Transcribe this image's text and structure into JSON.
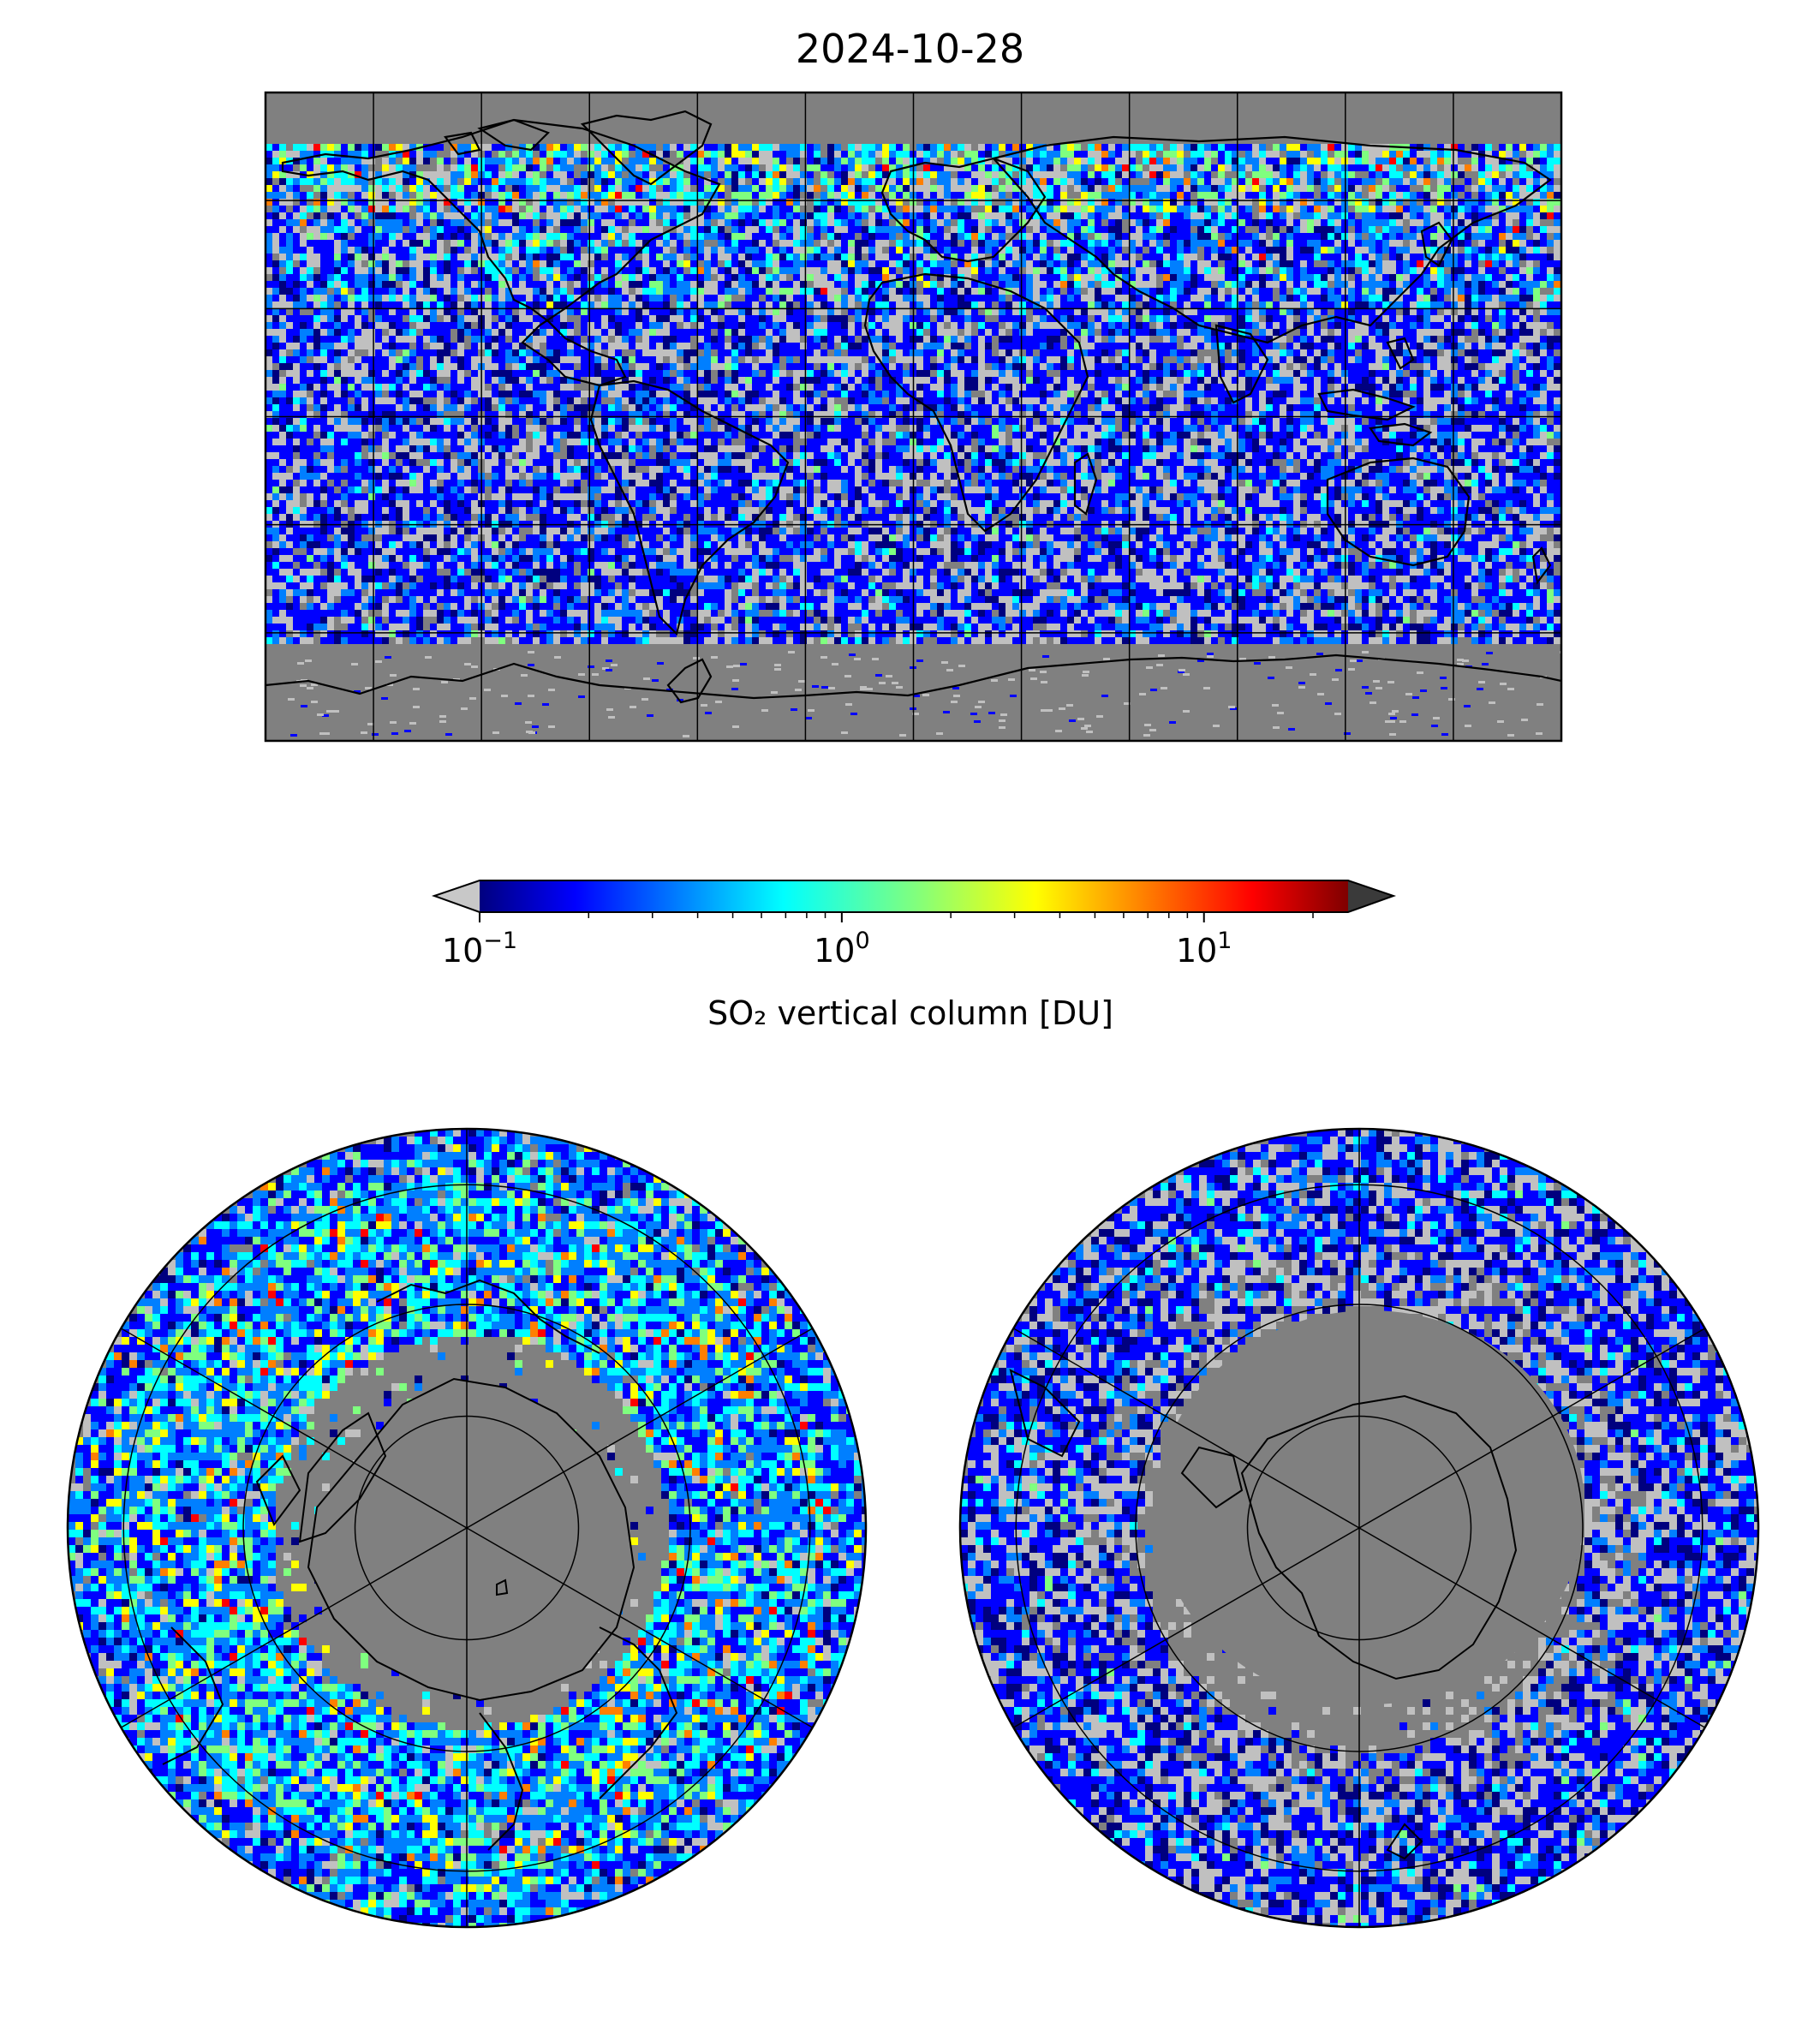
{
  "title": "2024-10-28",
  "colorbar": {
    "label": "SO₂ vertical column [DU]",
    "scale": "log",
    "range": [
      0.1,
      25
    ],
    "ticks": [
      {
        "base": "10",
        "exp": "−1",
        "value": 0.1
      },
      {
        "base": "10",
        "exp": "0",
        "value": 1
      },
      {
        "base": "10",
        "exp": "1",
        "value": 10
      }
    ],
    "colormap": "jet",
    "under_color": "#c8c8c8",
    "over_color": "#3a3a3a"
  },
  "maps": [
    {
      "name": "global",
      "projection": "plate-carree",
      "background": "#808080"
    },
    {
      "name": "north-polar",
      "projection": "north-polar-stereographic",
      "background": "#808080"
    },
    {
      "name": "south-polar",
      "projection": "south-polar-stereographic",
      "background": "#808080"
    }
  ],
  "colors": {
    "jet_stops": [
      "#00007f",
      "#0000ff",
      "#007fff",
      "#00ffff",
      "#7fff7f",
      "#ffff00",
      "#ff7f00",
      "#ff0000",
      "#7f0000"
    ],
    "no_data": "#808080",
    "coast": "#000000"
  }
}
